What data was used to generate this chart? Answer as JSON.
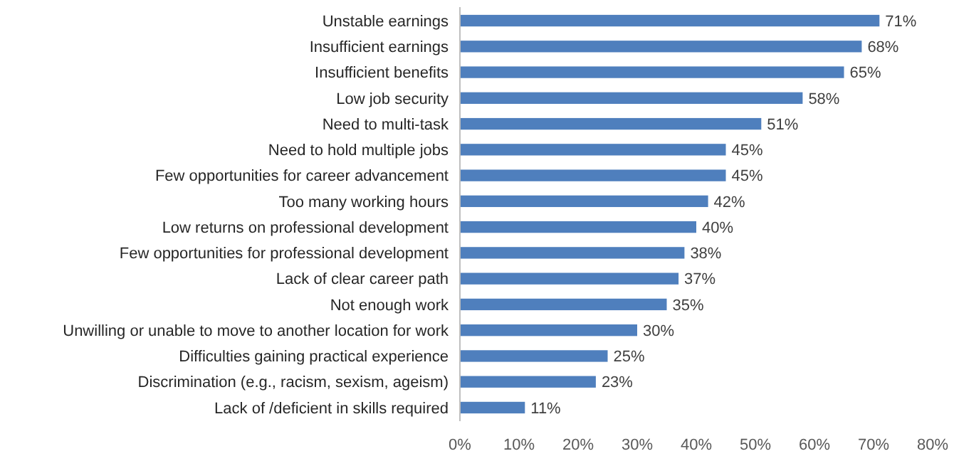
{
  "chart_data": {
    "type": "bar",
    "orientation": "horizontal",
    "categories": [
      "Unstable earnings",
      "Insufficient earnings",
      "Insufficient benefits",
      "Low job security",
      "Need to multi-task",
      "Need to hold multiple jobs",
      "Few opportunities for career advancement",
      "Too many working hours",
      "Low returns on professional development",
      "Few opportunities for professional development",
      "Lack of clear career path",
      "Not enough work",
      "Unwilling or unable to move to another location for work",
      "Difficulties gaining practical experience",
      "Discrimination (e.g., racism, sexism, ageism)",
      "Lack of /deficient in skills required"
    ],
    "values": [
      71,
      68,
      65,
      58,
      51,
      45,
      45,
      42,
      40,
      38,
      37,
      35,
      30,
      25,
      23,
      11
    ],
    "value_labels": [
      "71%",
      "68%",
      "65%",
      "58%",
      "51%",
      "45%",
      "45%",
      "42%",
      "40%",
      "38%",
      "37%",
      "35%",
      "30%",
      "25%",
      "23%",
      "11%"
    ],
    "color": "#4f7fbd",
    "xlim": [
      0,
      80
    ],
    "xticks": [
      {
        "value": 0,
        "label": "0%"
      },
      {
        "value": 10,
        "label": "10%"
      },
      {
        "value": 20,
        "label": "20%"
      },
      {
        "value": 30,
        "label": "30%"
      },
      {
        "value": 40,
        "label": "40%"
      },
      {
        "value": 50,
        "label": "50%"
      },
      {
        "value": 60,
        "label": "60%"
      },
      {
        "value": 70,
        "label": "70%"
      },
      {
        "value": 80,
        "label": "80%"
      }
    ],
    "grid": false
  }
}
